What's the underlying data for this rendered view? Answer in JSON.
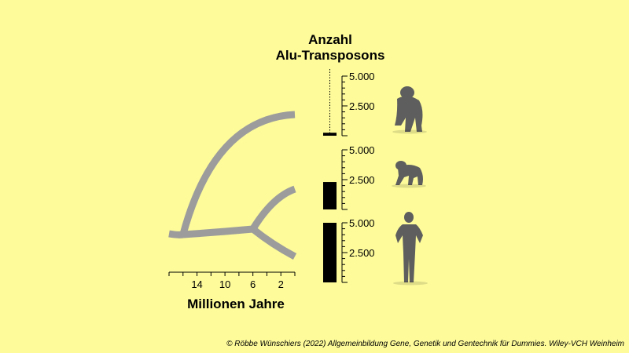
{
  "credit": "© Röbbe Wünschiers (2022) Allgemeinbildung Gene, Genetik und Gentechnik für Dummies. Wiley-VCH Weinheim",
  "colors": {
    "background": "#fdfb9a",
    "tree": "#9c9c9c",
    "bars": "#000000",
    "silhouettes": "#5e5e5e"
  },
  "chart_data": [
    {
      "type": "tree",
      "xlabel": "Millionen Jahre",
      "x_ticks": [
        14,
        10,
        6,
        2
      ],
      "x_range": [
        18,
        0
      ],
      "branch_points_mya": [
        16,
        6
      ],
      "leaves": [
        "orangutan",
        "chimpanzee",
        "human"
      ]
    },
    {
      "type": "bar",
      "title_line1": "Anzahl",
      "title_line2": "Alu-Transposons",
      "categories": [
        "orangutan",
        "chimpanzee",
        "human"
      ],
      "values": [
        250,
        2300,
        5000
      ],
      "y_ticks": [
        "5.000",
        "2.500"
      ],
      "y_tick_values": [
        5000,
        2500
      ],
      "ylim": [
        0,
        5000
      ],
      "icons": [
        "orangutan-icon",
        "chimpanzee-icon",
        "human-icon"
      ]
    }
  ]
}
